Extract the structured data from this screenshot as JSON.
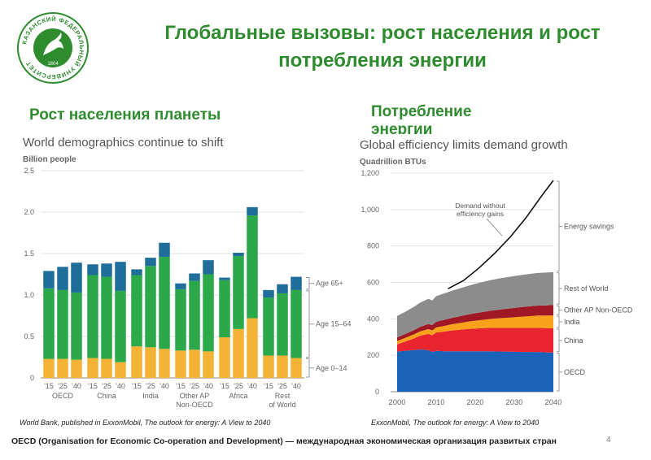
{
  "header": {
    "title": "Глобальные вызовы: рост населения и рост потребления энергии",
    "left_subtitle": "Рост населения планеты",
    "right_subtitle": "Потребление энергии"
  },
  "logo": {
    "text": "КАЗАНСКИЙ ФЕДЕРАЛЬНЫЙ УНИВЕРСИТЕТ",
    "year": "1804",
    "color": "#2e8b2e"
  },
  "sources": {
    "left": "World Bank, published in ExxonMobil, The outlook for energy: A View to 2040",
    "right": "ExxonMobil, The outlook for energy: A View to 2040"
  },
  "footnote": "OECD (Organisation for Economic Co-operation and Development) — международная экономическая организация развитых стран",
  "page_number": "4",
  "chart_data": [
    {
      "type": "bar",
      "stacked": true,
      "title": "World demographics continue to shift",
      "ylabel": "Billion people",
      "ylim": [
        0,
        2.5
      ],
      "yticks": [
        0,
        0.5,
        1.0,
        1.5,
        2.0,
        2.5
      ],
      "ytick_labels": [
        "0",
        "0.5",
        "1.0",
        "1.5",
        "2.0",
        "2.5"
      ],
      "groups": [
        {
          "label": "OECD",
          "years": [
            "'15",
            "'25",
            "'40"
          ]
        },
        {
          "label": "China",
          "years": [
            "'15",
            "'25",
            "'40"
          ]
        },
        {
          "label": "India",
          "years": [
            "'15",
            "'25",
            "'40"
          ]
        },
        {
          "label": "Other AP Non-OECD",
          "years": [
            "'15",
            "'25",
            "'40"
          ]
        },
        {
          "label": "Africa",
          "years": [
            "'15",
            "'25",
            "'40"
          ]
        },
        {
          "label": "Rest of World",
          "years": [
            "'15",
            "'25",
            "'40"
          ]
        }
      ],
      "series": [
        {
          "name": "Age 0–14",
          "color": "#f5b335",
          "values": [
            0.23,
            0.23,
            0.22,
            0.24,
            0.23,
            0.19,
            0.38,
            0.37,
            0.35,
            0.33,
            0.34,
            0.32,
            0.49,
            0.59,
            0.72,
            0.27,
            0.27,
            0.24
          ]
        },
        {
          "name": "Age 15–64",
          "color": "#2aa84a",
          "values": [
            0.85,
            0.83,
            0.81,
            1.0,
            0.99,
            0.86,
            0.86,
            0.98,
            1.11,
            0.74,
            0.83,
            0.93,
            0.69,
            0.88,
            1.24,
            0.7,
            0.75,
            0.82
          ]
        },
        {
          "name": "Age 65+",
          "color": "#1f6e9a",
          "values": [
            0.21,
            0.28,
            0.36,
            0.13,
            0.16,
            0.35,
            0.07,
            0.1,
            0.17,
            0.07,
            0.09,
            0.17,
            0.03,
            0.04,
            0.1,
            0.09,
            0.11,
            0.16
          ]
        }
      ],
      "legend": [
        "Age 65+",
        "Age 15–64",
        "Age 0–14"
      ]
    },
    {
      "type": "area",
      "stacked": true,
      "title": "Global efficiency limits demand growth",
      "ylabel": "Quadrillion BTUs",
      "xlim": [
        2000,
        2040
      ],
      "ylim": [
        0,
        1200
      ],
      "xticks": [
        2000,
        2010,
        2020,
        2030,
        2040
      ],
      "yticks": [
        0,
        200,
        400,
        600,
        800,
        1000,
        1200
      ],
      "ytick_labels": [
        "0",
        "200",
        "400",
        "600",
        "800",
        "1,000",
        "1,200"
      ],
      "x": [
        2000,
        2002,
        2004,
        2006,
        2008,
        2009,
        2010,
        2012,
        2014,
        2016,
        2018,
        2020,
        2022,
        2024,
        2026,
        2028,
        2030,
        2032,
        2034,
        2036,
        2038,
        2040
      ],
      "series": [
        {
          "name": "OECD",
          "color": "#1b63b8",
          "values": [
            220,
            225,
            228,
            232,
            228,
            218,
            225,
            222,
            222,
            222,
            222,
            222,
            222,
            222,
            221,
            220,
            219,
            218,
            218,
            218,
            216,
            215
          ]
        },
        {
          "name": "China",
          "color": "#e8242f",
          "values": [
            40,
            50,
            62,
            76,
            90,
            92,
            100,
            108,
            114,
            118,
            122,
            125,
            127,
            129,
            130,
            131,
            132,
            133,
            133,
            133,
            133,
            133
          ]
        },
        {
          "name": "India",
          "color": "#f8a21b",
          "values": [
            18,
            20,
            22,
            24,
            26,
            27,
            28,
            31,
            34,
            37,
            40,
            43,
            46,
            49,
            52,
            55,
            58,
            61,
            64,
            67,
            69,
            71
          ]
        },
        {
          "name": "Other AP Non-OECD",
          "color": "#a01825",
          "values": [
            20,
            21,
            23,
            25,
            28,
            29,
            31,
            33,
            35,
            37,
            39,
            41,
            43,
            45,
            47,
            49,
            51,
            53,
            54,
            55,
            56,
            57
          ]
        },
        {
          "name": "Rest of World",
          "color": "#8c8c8c",
          "values": [
            118,
            122,
            127,
            133,
            138,
            135,
            141,
            145,
            149,
            153,
            157,
            161,
            165,
            168,
            171,
            173,
            175,
            176,
            178,
            179,
            180,
            181
          ]
        }
      ],
      "line": {
        "name": "Demand without efficiency gains",
        "label_lines": [
          "Demand without",
          "efficiency gains"
        ],
        "x": [
          2013,
          2017,
          2021,
          2025,
          2029,
          2033,
          2037,
          2040
        ],
        "y": [
          565,
          610,
          680,
          760,
          850,
          955,
          1075,
          1160
        ]
      },
      "annotations": [
        "Energy savings",
        "Rest of World",
        "Other AP Non-OECD",
        "India",
        "China",
        "OECD"
      ]
    }
  ]
}
